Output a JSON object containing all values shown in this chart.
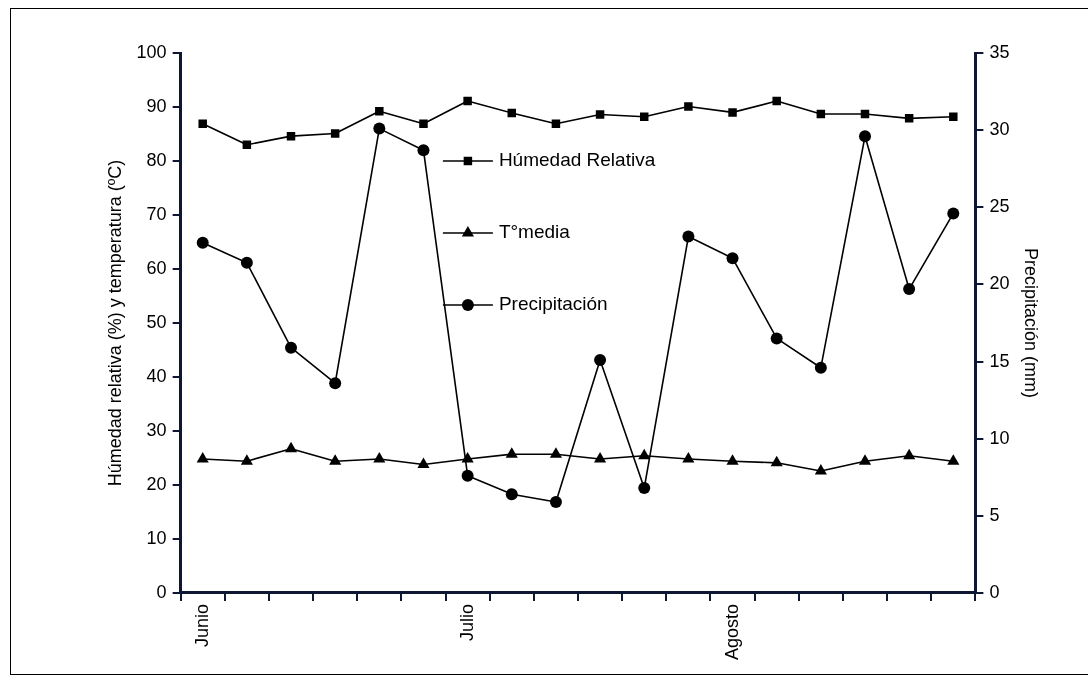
{
  "chart_data": {
    "type": "line",
    "ylabel": "Húmedad relativa (%) y temperatura (ºC)",
    "y2label": "Precipitación (mm)",
    "categories": [
      "Junio",
      null,
      null,
      null,
      null,
      null,
      "Julio",
      null,
      null,
      null,
      null,
      null,
      "Agosto",
      null,
      null,
      null,
      null,
      null
    ],
    "series": [
      {
        "name": "Húmedad Relativa",
        "color": "#000000",
        "marker": "square",
        "values": [
          86.9,
          83.0,
          84.6,
          85.1,
          89.2,
          86.9,
          91.1,
          88.9,
          86.9,
          88.6,
          88.2,
          90.1,
          89.0,
          91.1,
          88.7,
          88.7,
          87.9,
          88.2
        ]
      },
      {
        "name": "T°media",
        "color": "#000000",
        "marker": "triangle",
        "values": [
          24.8,
          24.4,
          26.7,
          24.4,
          24.8,
          23.8,
          24.8,
          25.7,
          25.7,
          24.8,
          25.4,
          24.8,
          24.4,
          24.1,
          22.6,
          24.4,
          25.4,
          24.4
        ]
      },
      {
        "name": "Precipitación",
        "color": "#000000",
        "marker": "circle",
        "axis": "y2",
        "values": [
          22.7,
          21.4,
          15.9,
          13.6,
          30.1,
          28.7,
          7.6,
          6.4,
          5.9,
          15.1,
          6.8,
          23.1,
          21.7,
          16.5,
          14.6,
          29.6,
          19.7,
          24.6
        ]
      }
    ],
    "ylim": [
      0,
      100
    ],
    "yticks": [
      0,
      10,
      20,
      30,
      40,
      50,
      60,
      70,
      80,
      90,
      100
    ],
    "y2lim": [
      0,
      35
    ],
    "y2ticks": [
      0,
      5,
      10,
      15,
      20,
      25,
      30,
      35
    ],
    "grid": false,
    "legend": "top",
    "line_style": "solid"
  }
}
